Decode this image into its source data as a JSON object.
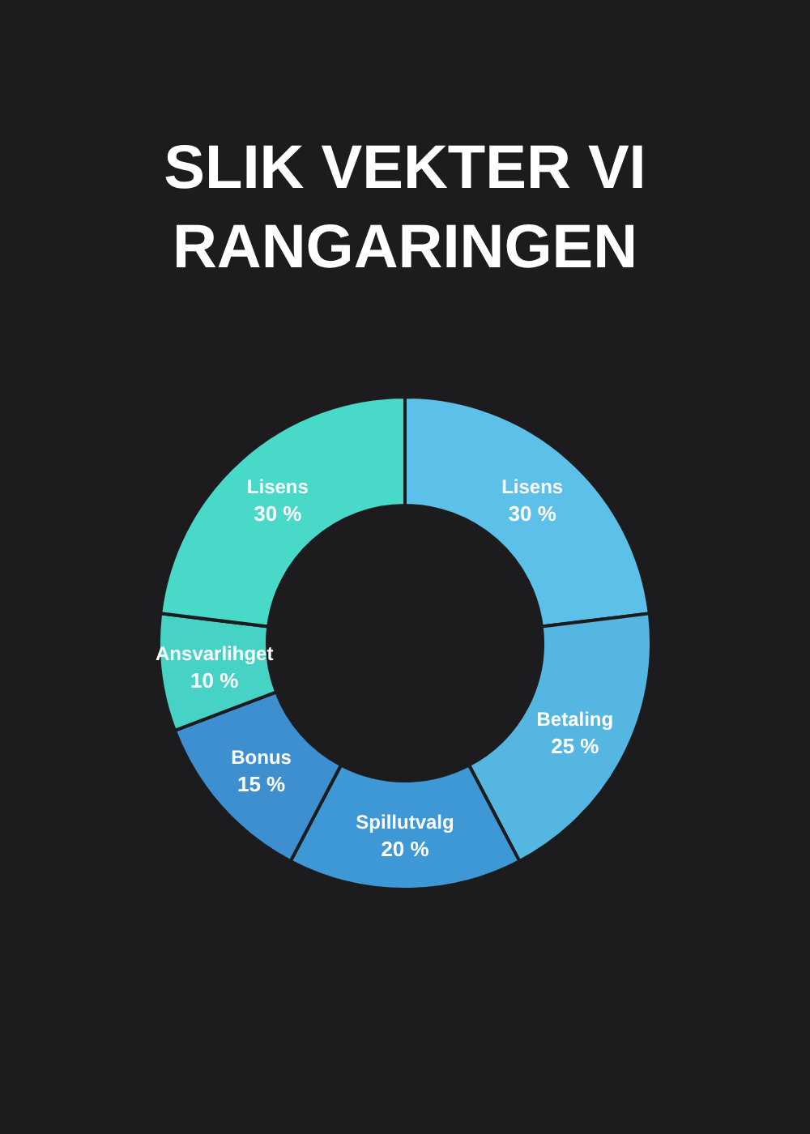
{
  "chart_data": {
    "type": "donut",
    "title": "SLIK VEKTER VI RANGARINGEN",
    "categories": [
      "Lisens",
      "Betaling",
      "Spillutvalg",
      "Bonus",
      "Ansvarlihget",
      "Lisens"
    ],
    "values": [
      30,
      25,
      20,
      15,
      10,
      30
    ],
    "value_labels": [
      "30 %",
      "25 %",
      "20 %",
      "15 %",
      "10 %",
      "30 %"
    ],
    "colors": [
      "#5cc0e8",
      "#55b6e2",
      "#3f98d6",
      "#3e8fcf",
      "#46d3c6",
      "#48d9c9"
    ]
  }
}
